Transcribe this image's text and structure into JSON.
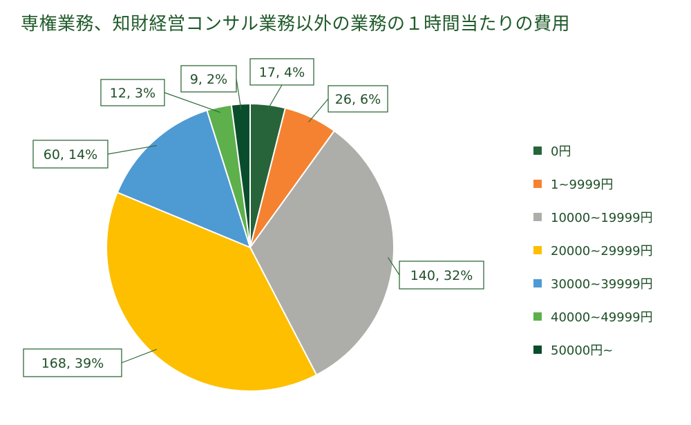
{
  "chart_data": {
    "type": "pie",
    "title": "専権業務、知財経営コンサル業務以外の業務の１時間当たりの費用",
    "legend_position": "right",
    "slices": [
      {
        "name": "0円",
        "value": 17,
        "percent": "4%",
        "color": "#27643a"
      },
      {
        "name": "1~9999円",
        "value": 26,
        "percent": "6%",
        "color": "#f58231"
      },
      {
        "name": "10000~19999円",
        "value": 140,
        "percent": "32%",
        "color": "#adadaa"
      },
      {
        "name": "20000~29999円",
        "value": 168,
        "percent": "39%",
        "color": "#fdbf00"
      },
      {
        "name": "30000~39999円",
        "value": 60,
        "percent": "14%",
        "color": "#4e9ad3"
      },
      {
        "name": "40000~49999円",
        "value": 12,
        "percent": "3%",
        "color": "#5db04c"
      },
      {
        "name": "50000円~",
        "value": 9,
        "percent": "2%",
        "color": "#0a4d2c"
      }
    ]
  }
}
